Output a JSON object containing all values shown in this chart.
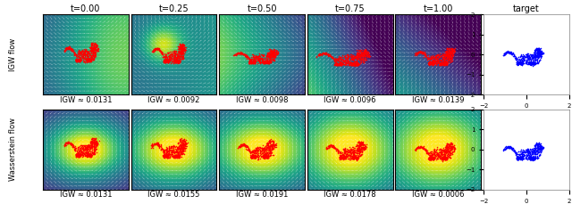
{
  "col_titles": [
    "t=0.00",
    "t=0.25",
    "t=0.50",
    "t=0.75",
    "t=1.00",
    "target"
  ],
  "row_labels": [
    "IGW flow",
    "Wasserstein flow"
  ],
  "igw_labels": [
    "IGW ≈ 0.0131",
    "IGW ≈ 0.0092",
    "IGW ≈ 0.0098",
    "IGW ≈ 0.0096",
    "IGW ≈ 0.0139"
  ],
  "wass_labels": [
    "IGW ≈ 0.0131",
    "IGW ≈ 0.0155",
    "IGW ≈ 0.0191",
    "IGW ≈ 0.0178",
    "IGW ≈ 0.0006"
  ],
  "dot_color": "#0000ff",
  "red_dot_color": "#ff0000",
  "label_fontsize": 6,
  "title_fontsize": 7
}
